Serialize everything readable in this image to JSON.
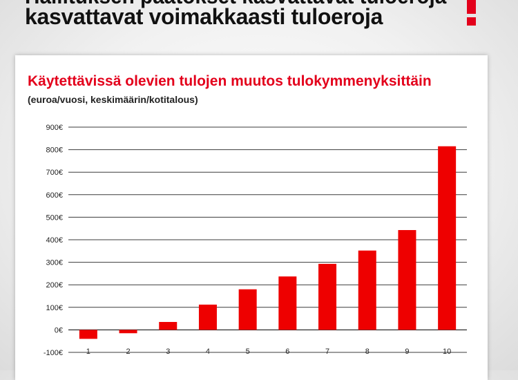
{
  "page": {
    "headline_partial": "Hallituksen päätökset kasvattavat tuloeroja",
    "headline": "kasvattavat voimakkaasti tuloeroja"
  },
  "colors": {
    "accent": "#e3001b",
    "bar": "#ee0000",
    "grid": "#3a3a3a",
    "text": "#111111"
  },
  "chart_data": {
    "type": "bar",
    "title": "Käytettävissä olevien tulojen muutos tulokymmenyksittäin",
    "subtitle": "(euroa/vuosi, keskimäärin/kotitalous)",
    "xlabel": "",
    "ylabel": "",
    "categories": [
      "1",
      "2",
      "3",
      "4",
      "5",
      "6",
      "7",
      "8",
      "9",
      "10"
    ],
    "values": [
      -40,
      -15,
      35,
      112,
      180,
      237,
      293,
      352,
      443,
      815
    ],
    "ylim": [
      -100,
      900
    ],
    "yticks": [
      -100,
      0,
      100,
      200,
      300,
      400,
      500,
      600,
      700,
      800,
      900
    ],
    "ytick_labels": [
      "-100€",
      "0€",
      "100€",
      "200€",
      "300€",
      "400€",
      "500€",
      "600€",
      "700€",
      "800€",
      "900€"
    ],
    "grid": true,
    "legend": "none"
  }
}
